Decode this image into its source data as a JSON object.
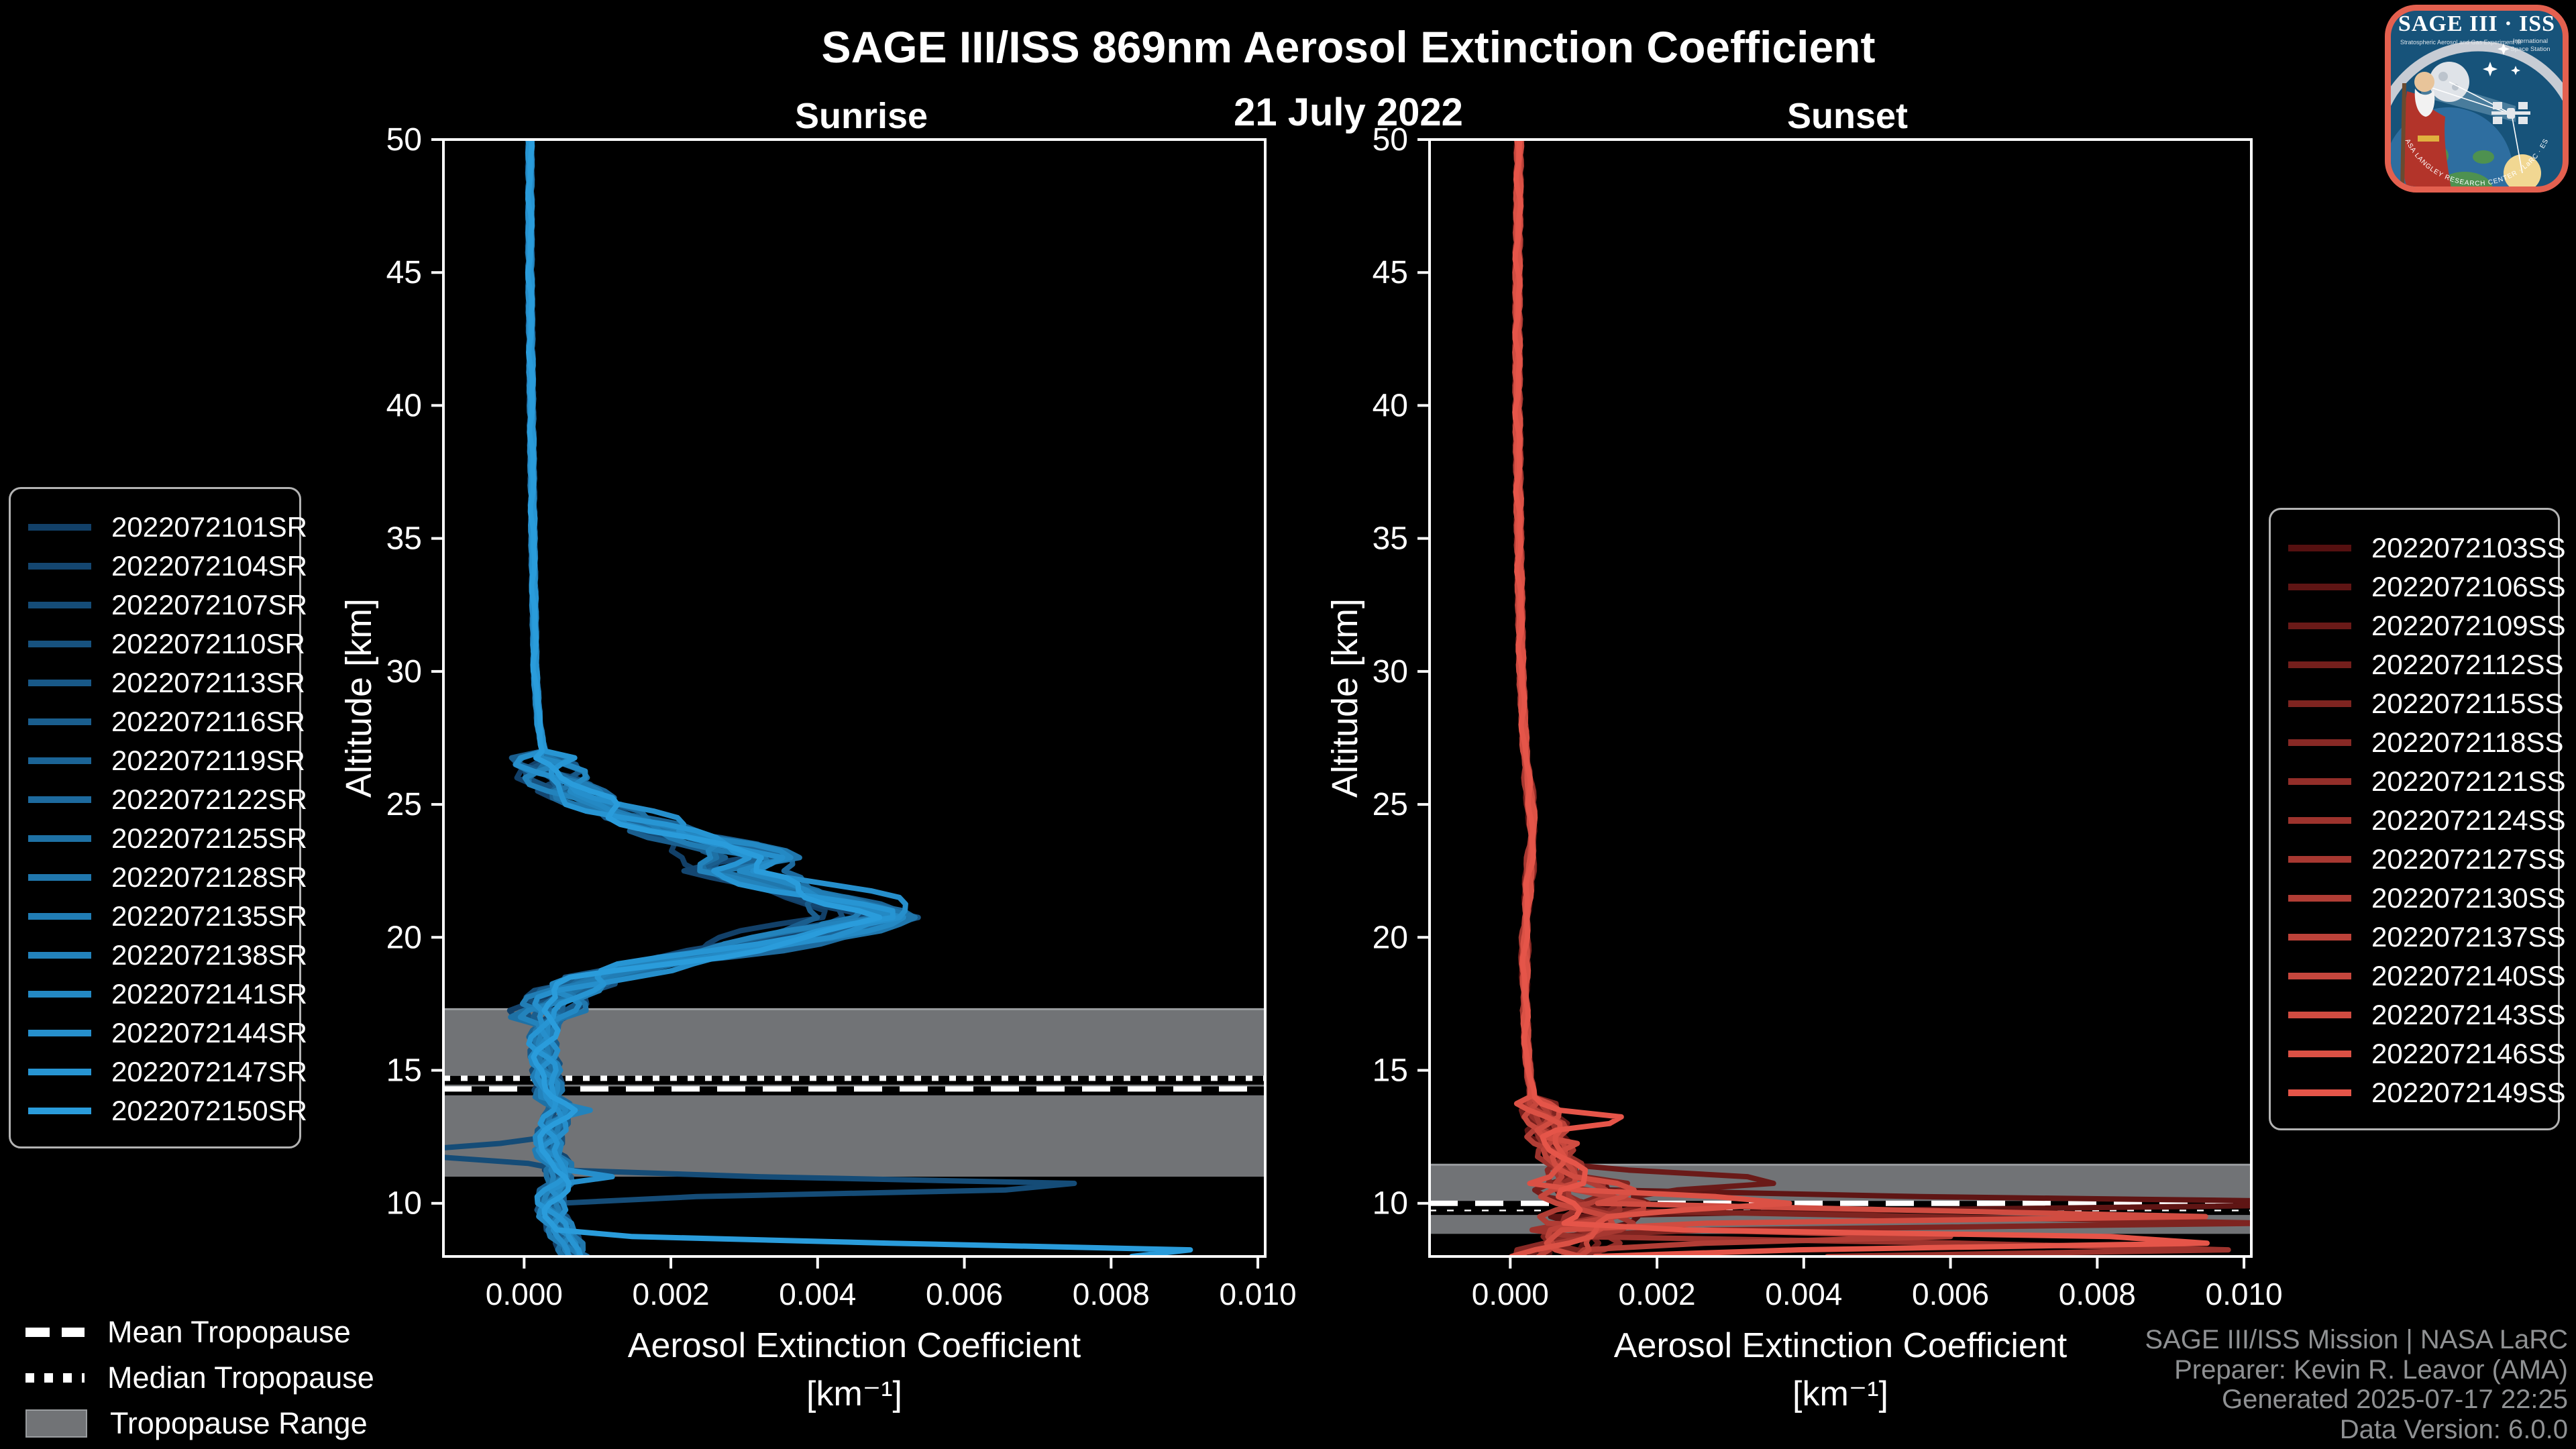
{
  "page": {
    "main_title": "SAGE III/ISS 869nm Aerosol Extinction Coefficient",
    "date": "21 July 2022"
  },
  "chart_data": {
    "type": "line",
    "title": "SAGE III/ISS 869nm Aerosol Extinction Coefficient",
    "subtitle": "21 July 2022",
    "xlabel": "Aerosol Extinction Coefficient",
    "xlabel_units": "[km⁻¹]",
    "ylabel": "Altitude [km]",
    "xlim": [
      -0.0011,
      0.0101
    ],
    "ylim": [
      8,
      50
    ],
    "xticks": {
      "values": [
        0.0,
        0.002,
        0.004,
        0.006,
        0.008,
        0.01
      ],
      "labels": [
        "0.000",
        "0.002",
        "0.004",
        "0.006",
        "0.008",
        "0.010"
      ]
    },
    "yticks": {
      "values": [
        50,
        45,
        40,
        35,
        30,
        25,
        20,
        15,
        10
      ],
      "labels": [
        "50",
        "45",
        "40",
        "35",
        "30",
        "25",
        "20",
        "15",
        "10"
      ]
    },
    "grid": false,
    "legend_position": "outside-left / outside-right",
    "panels": [
      {
        "id": "sunrise",
        "title": "Sunrise",
        "tropopause": {
          "mean_km": 14.3,
          "median_km": 14.7,
          "range_km": [
            11.0,
            17.3
          ]
        },
        "wiggle_tiers": [
          {
            "min_alt": 27,
            "amp": 2e-05
          },
          {
            "min_alt": 17,
            "amp": 0.00032
          },
          {
            "min_alt": 8,
            "amp": 0.00013
          }
        ],
        "base_profile": [
          [
            50,
            8e-05
          ],
          [
            45,
            8e-05
          ],
          [
            40,
            0.0001
          ],
          [
            35,
            0.00012
          ],
          [
            30,
            0.00015
          ],
          [
            28,
            0.0002
          ],
          [
            26.5,
            0.0003
          ],
          [
            25.5,
            0.0006
          ],
          [
            25,
            0.001
          ],
          [
            24.5,
            0.0015
          ],
          [
            24,
            0.002
          ],
          [
            23.5,
            0.0027
          ],
          [
            23,
            0.0032
          ],
          [
            22.5,
            0.0028
          ],
          [
            22,
            0.0035
          ],
          [
            21.5,
            0.0042
          ],
          [
            21,
            0.0048
          ],
          [
            20.8,
            0.005
          ],
          [
            20.5,
            0.0045
          ],
          [
            20,
            0.0038
          ],
          [
            19.5,
            0.0028
          ],
          [
            19,
            0.0018
          ],
          [
            18.5,
            0.001
          ],
          [
            18,
            0.0006
          ],
          [
            17.5,
            0.0004
          ],
          [
            17,
            0.0003
          ],
          [
            16,
            0.00025
          ],
          [
            15,
            0.0003
          ],
          [
            14,
            0.00035
          ],
          [
            13.5,
            0.0005
          ],
          [
            13,
            0.0004
          ],
          [
            12,
            0.0003
          ],
          [
            11.5,
            0.00045
          ],
          [
            11,
            0.0005
          ],
          [
            10.5,
            0.0004
          ],
          [
            10,
            0.00035
          ],
          [
            9.5,
            0.0004
          ],
          [
            9,
            0.0005
          ],
          [
            8.5,
            0.0006
          ],
          [
            8,
            0.0007
          ]
        ],
        "series": [
          {
            "name": "2022072101SR",
            "color": "#124068",
            "peak_scale": 0.82,
            "seed": 0,
            "spikes": []
          },
          {
            "name": "2022072104SR",
            "color": "#144670",
            "peak_scale": 0.9,
            "seed": 1,
            "spikes": []
          },
          {
            "name": "2022072107SR",
            "color": "#154c77",
            "peak_scale": 0.98,
            "seed": 2,
            "spikes": [
              {
                "alt": 11.9,
                "ext": -0.002,
                "width": 0.5
              },
              {
                "alt": 10.65,
                "ext": 0.0094,
                "width": 0.55
              }
            ]
          },
          {
            "name": "2022072110SR",
            "color": "#17527f",
            "peak_scale": 0.94,
            "seed": 3,
            "spikes": []
          },
          {
            "name": "2022072113SR",
            "color": "#185887",
            "peak_scale": 1.04,
            "seed": 4,
            "spikes": []
          },
          {
            "name": "2022072116SR",
            "color": "#1a5e8e",
            "peak_scale": 0.88,
            "seed": 5,
            "spikes": []
          },
          {
            "name": "2022072119SR",
            "color": "#1b6496",
            "peak_scale": 1.0,
            "seed": 6,
            "spikes": []
          },
          {
            "name": "2022072122SR",
            "color": "#1d6a9e",
            "peak_scale": 1.1,
            "seed": 7,
            "spikes": []
          },
          {
            "name": "2022072125SR",
            "color": "#1e71a5",
            "peak_scale": 0.95,
            "seed": 8,
            "spikes": []
          },
          {
            "name": "2022072128SR",
            "color": "#2077ad",
            "peak_scale": 1.06,
            "seed": 9,
            "spikes": []
          },
          {
            "name": "2022072135SR",
            "color": "#217db5",
            "peak_scale": 1.0,
            "seed": 10,
            "spikes": []
          },
          {
            "name": "2022072138SR",
            "color": "#2383bc",
            "peak_scale": 0.92,
            "seed": 11,
            "spikes": [
              {
                "alt": 13.5,
                "ext": 0.0009,
                "width": 0.4
              }
            ]
          },
          {
            "name": "2022072141SR",
            "color": "#2489c4",
            "peak_scale": 1.04,
            "seed": 12,
            "spikes": []
          },
          {
            "name": "2022072144SR",
            "color": "#268fcc",
            "peak_scale": 1.12,
            "seed": 13,
            "spikes": [
              {
                "alt": 11.0,
                "ext": 0.0012,
                "width": 0.35
              }
            ]
          },
          {
            "name": "2022072147SR",
            "color": "#2795d3",
            "peak_scale": 0.96,
            "seed": 14,
            "spikes": []
          },
          {
            "name": "2022072150SR",
            "color": "#2a9cdb",
            "peak_scale": 1.0,
            "seed": 15,
            "spikes": [
              {
                "alt": 8.15,
                "ext": 0.0108,
                "width": 0.7
              }
            ]
          }
        ]
      },
      {
        "id": "sunset",
        "title": "Sunset",
        "tropopause": {
          "mean_km": 10.0,
          "median_km": 9.8,
          "range_km": [
            8.85,
            11.45
          ]
        },
        "wiggle_tiers": [
          {
            "min_alt": 14,
            "amp": 2.5e-05
          },
          {
            "min_alt": 11,
            "amp": 0.00018
          },
          {
            "min_alt": 8,
            "amp": 0.00045
          }
        ],
        "base_profile": [
          [
            50,
            0.00012
          ],
          [
            45,
            0.0001
          ],
          [
            40,
            0.0001
          ],
          [
            35,
            0.00012
          ],
          [
            30,
            0.00015
          ],
          [
            27,
            0.0002
          ],
          [
            25,
            0.00028
          ],
          [
            24,
            0.0003
          ],
          [
            23,
            0.00028
          ],
          [
            22,
            0.00025
          ],
          [
            20,
            0.0002
          ],
          [
            18,
            0.0002
          ],
          [
            16,
            0.00022
          ],
          [
            15,
            0.00025
          ],
          [
            14,
            0.0003
          ],
          [
            13.5,
            0.0004
          ],
          [
            13,
            0.0005
          ],
          [
            12.5,
            0.0005
          ],
          [
            12,
            0.0006
          ],
          [
            11.5,
            0.0007
          ],
          [
            11,
            0.0008
          ],
          [
            10.5,
            0.001
          ],
          [
            10,
            0.0012
          ],
          [
            9.5,
            0.0011
          ],
          [
            9,
            0.0009
          ],
          [
            8.5,
            0.0008
          ],
          [
            8,
            0.0007
          ]
        ],
        "series": [
          {
            "name": "2022072103SS",
            "color": "#551010",
            "peak_scale": 1.0,
            "seed": 3,
            "spikes": []
          },
          {
            "name": "2022072106SS",
            "color": "#5f1514",
            "peak_scale": 0.95,
            "seed": 4,
            "spikes": [
              {
                "alt": 10.0,
                "ext": 0.013,
                "width": 0.45
              }
            ]
          },
          {
            "name": "2022072109SS",
            "color": "#6a1a18",
            "peak_scale": 1.05,
            "seed": 5,
            "spikes": [
              {
                "alt": 10.85,
                "ext": 0.0043,
                "width": 0.6
              }
            ]
          },
          {
            "name": "2022072112SS",
            "color": "#741f1c",
            "peak_scale": 0.9,
            "seed": 6,
            "spikes": []
          },
          {
            "name": "2022072115SS",
            "color": "#7e2420",
            "peak_scale": 1.1,
            "seed": 7,
            "spikes": [
              {
                "alt": 9.3,
                "ext": 0.012,
                "width": 0.4
              }
            ]
          },
          {
            "name": "2022072118SS",
            "color": "#882925",
            "peak_scale": 0.95,
            "seed": 8,
            "spikes": []
          },
          {
            "name": "2022072121SS",
            "color": "#932e29",
            "peak_scale": 1.0,
            "seed": 9,
            "spikes": []
          },
          {
            "name": "2022072124SS",
            "color": "#9d332d",
            "peak_scale": 1.05,
            "seed": 10,
            "spikes": [
              {
                "alt": 8.3,
                "ext": 0.011,
                "width": 0.5
              }
            ]
          },
          {
            "name": "2022072127SS",
            "color": "#a73831",
            "peak_scale": 0.9,
            "seed": 11,
            "spikes": []
          },
          {
            "name": "2022072130SS",
            "color": "#b13d35",
            "peak_scale": 1.0,
            "seed": 12,
            "spikes": [
              {
                "alt": 8.75,
                "ext": 0.006,
                "width": 0.4
              }
            ]
          },
          {
            "name": "2022072137SS",
            "color": "#bc4239",
            "peak_scale": 1.05,
            "seed": 13,
            "spikes": []
          },
          {
            "name": "2022072140SS",
            "color": "#c6473d",
            "peak_scale": 0.95,
            "seed": 14,
            "spikes": []
          },
          {
            "name": "2022072143SS",
            "color": "#d04c41",
            "peak_scale": 1.0,
            "seed": 15,
            "spikes": [
              {
                "alt": 12.2,
                "ext": 0.001,
                "width": 0.4
              },
              {
                "alt": 9.55,
                "ext": 0.011,
                "width": 0.4
              }
            ]
          },
          {
            "name": "2022072146SS",
            "color": "#db5145",
            "peak_scale": 1.05,
            "seed": 16,
            "spikes": [
              {
                "alt": 10.05,
                "ext": 0.0041,
                "width": 0.5
              }
            ]
          },
          {
            "name": "2022072149SS",
            "color": "#e55549",
            "peak_scale": 1.0,
            "seed": 17,
            "spikes": [
              {
                "alt": 13.15,
                "ext": 0.0019,
                "width": 0.5
              },
              {
                "alt": 8.6,
                "ext": 0.012,
                "width": 0.5
              }
            ]
          }
        ]
      }
    ]
  },
  "tropopause_legend": {
    "mean": "Mean Tropopause",
    "median": "Median Tropopause",
    "range": "Tropopause Range"
  },
  "attribution": {
    "line1": "SAGE III/ISS Mission | NASA LaRC",
    "line2": "Preparer: Kevin R. Leavor (AMA)",
    "line3": "Generated 2025-07-17 22:25",
    "line4": "Data Version: 6.0.0"
  },
  "logo": {
    "title": "SAGE III · ISS",
    "subtitle_left": "Stratospheric Aerosol and Gas Experiment III",
    "subtitle_right_1": "International",
    "subtitle_right_2": "Space Station",
    "border_text": "NASA LANGLEY RESEARCH CENTER · LaRC · ESA"
  },
  "colors": {
    "background": "#000000",
    "frame": "#ffffff",
    "tropopause_band": "#717376",
    "tropopause_band_edge": "#9a9da0",
    "attribution_text": "#8f9193",
    "legend_border": "#b3b3b3",
    "logo_border": "#e4604f",
    "logo_background": "#17537a"
  }
}
